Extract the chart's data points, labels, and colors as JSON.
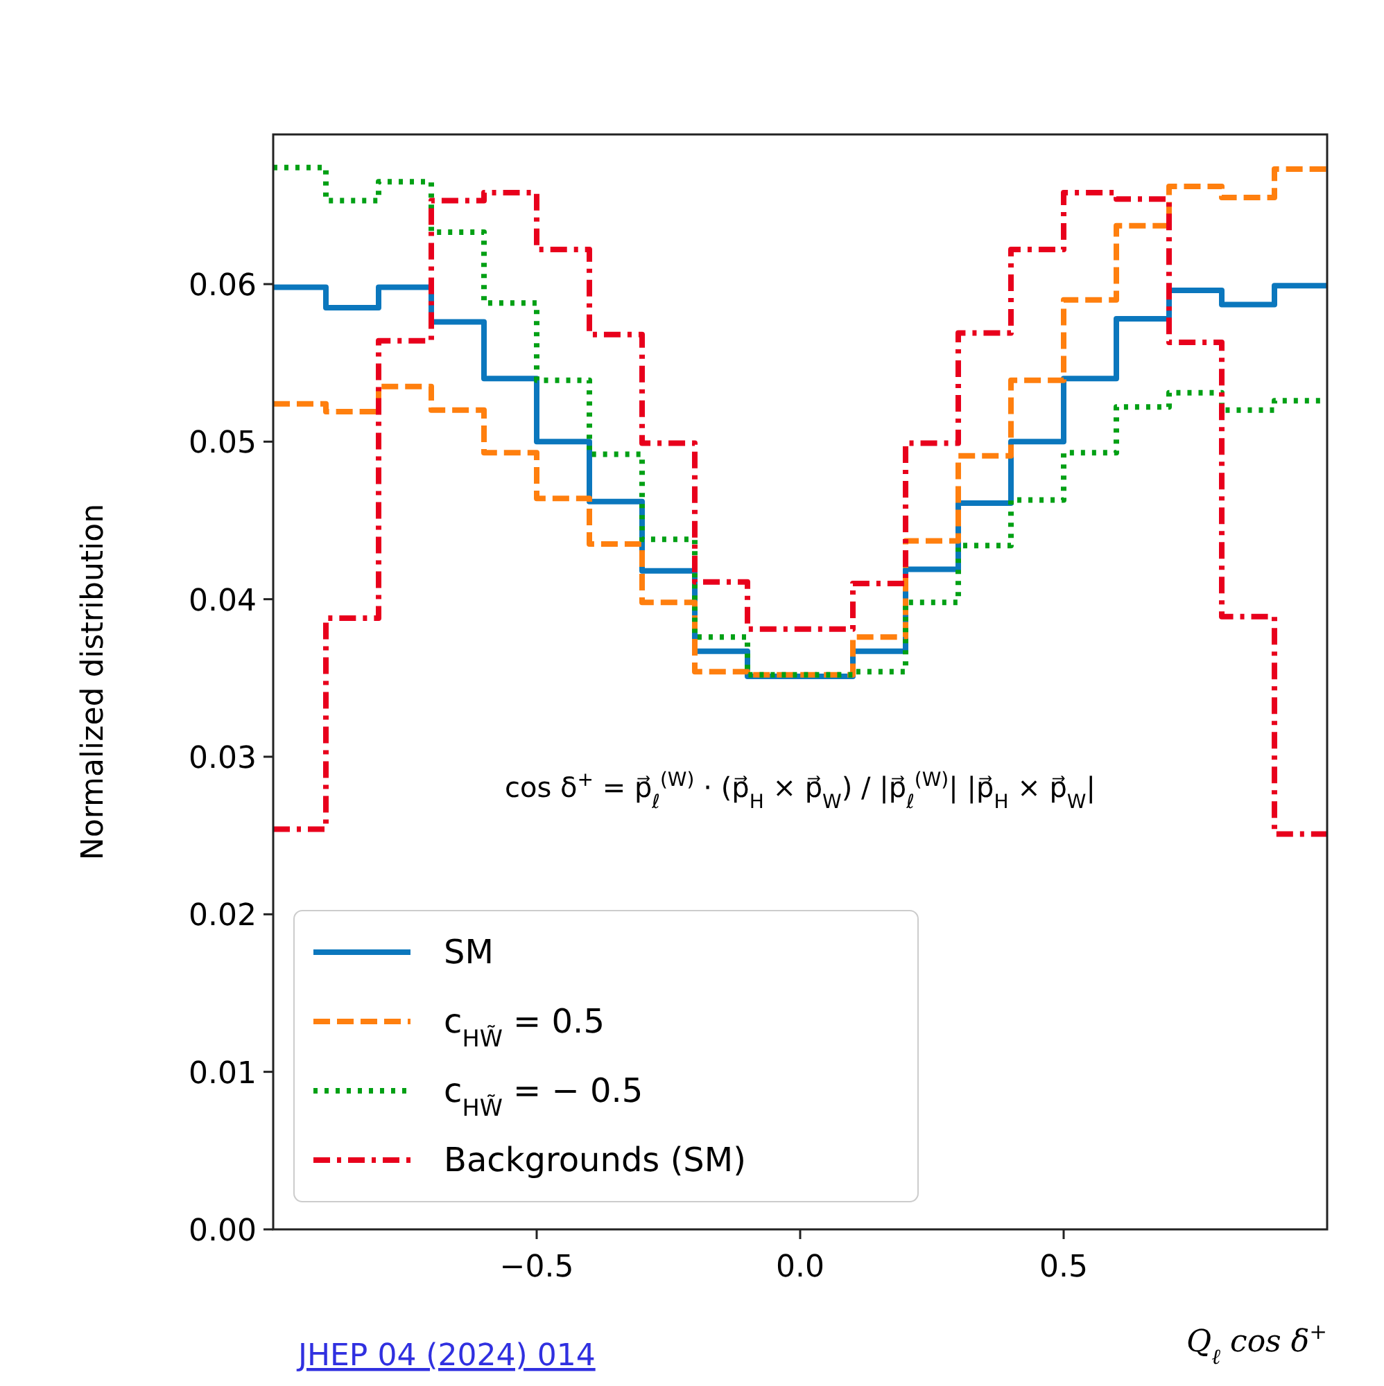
{
  "chart_data": {
    "type": "histogram",
    "xlabel": "Q$_{ℓ}$ cos δ$^{+}$",
    "ylabel": "Normalized distribution",
    "bins": [
      -1,
      -0.9,
      -0.8,
      -0.7,
      -0.6,
      -0.5,
      -0.4,
      -0.3,
      -0.2,
      -0.1,
      0,
      0.1,
      0.2,
      0.3,
      0.4,
      0.5,
      0.6,
      0.7,
      0.8,
      0.9,
      1
    ],
    "series": [
      {
        "name": "SM",
        "color": "#0b77bd",
        "line_style": "solid",
        "values": [
          0.0598,
          0.0585,
          0.0598,
          0.0576,
          0.054,
          0.05,
          0.0462,
          0.0418,
          0.0367,
          0.0351,
          0.0351,
          0.0367,
          0.0419,
          0.0461,
          0.05,
          0.054,
          0.0578,
          0.0596,
          0.0587,
          0.0599
        ]
      },
      {
        "name": "c$_{HW̃}$ = 0.5",
        "color": "#ff7f0e",
        "line_style": "dashed",
        "values": [
          0.0524,
          0.0519,
          0.0535,
          0.052,
          0.0493,
          0.0464,
          0.0435,
          0.0398,
          0.0354,
          0.0352,
          0.0352,
          0.0376,
          0.0437,
          0.0491,
          0.0539,
          0.059,
          0.0637,
          0.0662,
          0.0655,
          0.0673
        ]
      },
      {
        "name": "c$_{HW̃}$ = − 0.5",
        "color": "#00a014",
        "line_style": "dotted",
        "values": [
          0.0674,
          0.0653,
          0.0665,
          0.0633,
          0.0588,
          0.0539,
          0.0492,
          0.0438,
          0.0376,
          0.0352,
          0.0352,
          0.0354,
          0.0398,
          0.0434,
          0.0463,
          0.0493,
          0.0522,
          0.0531,
          0.052,
          0.0526
        ]
      },
      {
        "name": "Backgrounds (SM)",
        "color": "#e8001c",
        "line_style": "dashdot",
        "values": [
          0.0254,
          0.0388,
          0.0564,
          0.0653,
          0.0658,
          0.0622,
          0.0568,
          0.0499,
          0.0411,
          0.0381,
          0.0381,
          0.041,
          0.0499,
          0.0569,
          0.0622,
          0.0658,
          0.0654,
          0.0563,
          0.0389,
          0.0251
        ]
      }
    ],
    "xlim": [
      -1,
      1
    ],
    "xticks": [
      {
        "value": -0.5,
        "label": "−0.5"
      },
      {
        "value": 0,
        "label": "0.0"
      },
      {
        "value": 0.5,
        "label": "0.5"
      }
    ],
    "ylim": [
      0,
      0.0695
    ],
    "yticks": [
      {
        "value": 0,
        "label": "0.00"
      },
      {
        "value": 0.01,
        "label": "0.01"
      },
      {
        "value": 0.02,
        "label": "0.02"
      },
      {
        "value": 0.03,
        "label": "0.03"
      },
      {
        "value": 0.04,
        "label": "0.04"
      },
      {
        "value": 0.05,
        "label": "0.05"
      },
      {
        "value": 0.06,
        "label": "0.06"
      }
    ],
    "legend": "lower left",
    "grid": false,
    "annotations": [
      "cos δ$^{+}$ = p⃗$_{ℓ}$$^{(W)}$ ·  (p⃗$_{H}$ × p⃗$_{W}$) / |p⃗$_{ℓ}$$^{(W)}$| |p⃗$_{H}$ × p⃗$_{W}$|",
      "JHEP 04 (2024) 014"
    ]
  }
}
